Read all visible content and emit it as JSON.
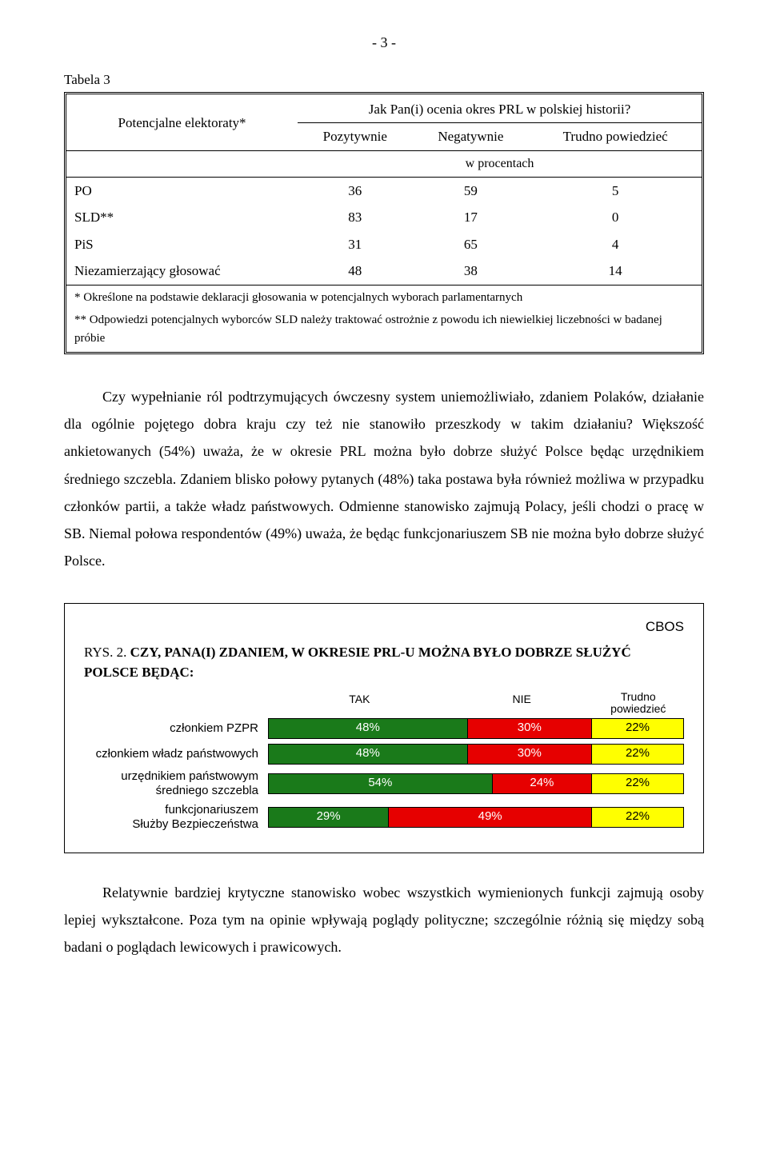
{
  "page_number": "- 3 -",
  "table": {
    "label": "Tabela 3",
    "electorate_label": "Potencjalne elektoraty*",
    "title": "Jak Pan(i) ocenia okres PRL w polskiej historii?",
    "columns": [
      "Pozytywnie",
      "Negatywnie",
      "Trudno powiedzieć"
    ],
    "subheader": "w procentach",
    "rows": [
      {
        "label": "PO",
        "values": [
          "36",
          "59",
          "5"
        ]
      },
      {
        "label": "SLD**",
        "values": [
          "83",
          "17",
          "0"
        ]
      },
      {
        "label": "PiS",
        "values": [
          "31",
          "65",
          "4"
        ]
      },
      {
        "label": "Niezamierzający głosować",
        "values": [
          "48",
          "38",
          "14"
        ]
      }
    ],
    "footnote1": "* Określone na podstawie deklaracji głosowania w potencjalnych wyborach parlamentarnych",
    "footnote2": "** Odpowiedzi potencjalnych wyborców SLD należy traktować ostrożnie z powodu ich niewielkiej liczebności w badanej próbie"
  },
  "paragraph1": "Czy wypełnianie ról podtrzymujących ówczesny system uniemożliwiało, zdaniem Polaków, działanie dla ogólnie pojętego dobra kraju czy też nie stanowiło przeszkody w takim działaniu? Większość ankietowanych (54%) uważa, że w okresie PRL można było dobrze służyć Polsce będąc urzędnikiem średniego szczebla. Zdaniem blisko połowy pytanych (48%) taka postawa była również możliwa w przypadku członków partii, a także władz państwowych. Odmienne stanowisko zajmują Polacy, jeśli chodzi o pracę w SB. Niemal połowa respondentów (49%) uważa, że będąc funkcjonariuszem SB nie można było dobrze służyć Polsce.",
  "chart": {
    "cbos": "CBOS",
    "title_prefix": "RYS. 2. ",
    "title_bold": "CZY, PANA(I) ZDANIEM, W OKRESIE PRL-U MOŻNA BYŁO DOBRZE SŁUŻYĆ POLSCE BĘDĄC:",
    "legend": [
      "TAK",
      "NIE",
      "Trudno powiedzieć"
    ],
    "colors": {
      "tak": "#1a7a1a",
      "nie": "#e60000",
      "trudno": "#ffff00"
    },
    "text_colors": {
      "tak": "#ffffff",
      "nie": "#ffffff",
      "trudno": "#000000"
    },
    "rows": [
      {
        "label": "członkiem PZPR",
        "values": [
          48,
          30,
          22
        ]
      },
      {
        "label": "członkiem władz państwowych",
        "values": [
          48,
          30,
          22
        ]
      },
      {
        "label": "urzędnikiem państwowym średniego szczebla",
        "values": [
          54,
          24,
          22
        ]
      },
      {
        "label": "funkcjonariuszem Służby Bezpieczeństwa",
        "values": [
          29,
          49,
          22
        ]
      }
    ]
  },
  "paragraph2": "Relatywnie bardziej krytyczne stanowisko wobec wszystkich wymienionych funkcji zajmują osoby lepiej wykształcone. Poza tym na opinie wpływają poglądy polityczne; szczególnie różnią się między sobą badani o poglądach lewicowych i prawicowych."
}
